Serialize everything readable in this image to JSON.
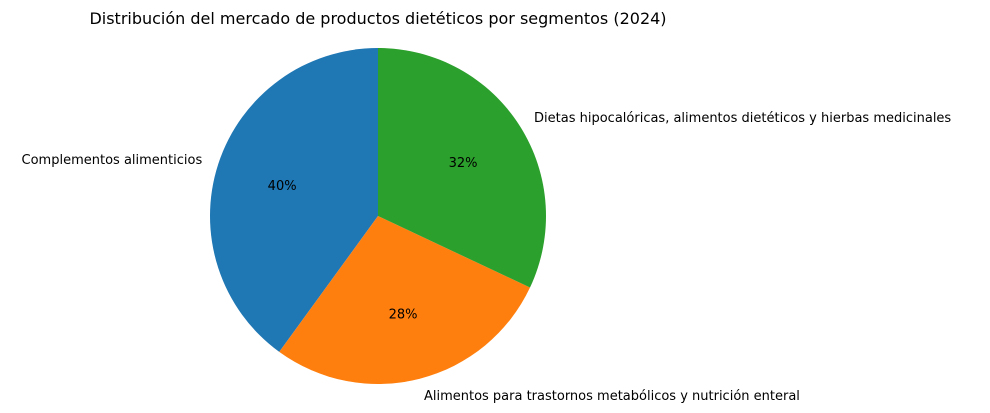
{
  "chart_data": {
    "type": "pie",
    "title": "Distribución del mercado de productos dietéticos por segmentos (2024)",
    "start_angle": 90,
    "direction": "counterclockwise",
    "slices": [
      {
        "label": "Complementos alimenticios",
        "value": 40,
        "pct_label": "40%",
        "color": "#1f77b4"
      },
      {
        "label": "Alimentos para trastornos metabólicos y nutrición enteral",
        "value": 28,
        "pct_label": "28%",
        "color": "#ff7f0e"
      },
      {
        "label": "Dietas hipocalóricas, alimentos dietéticos y hierbas medicinales",
        "value": 32,
        "pct_label": "32%",
        "color": "#2ca02c"
      }
    ]
  }
}
